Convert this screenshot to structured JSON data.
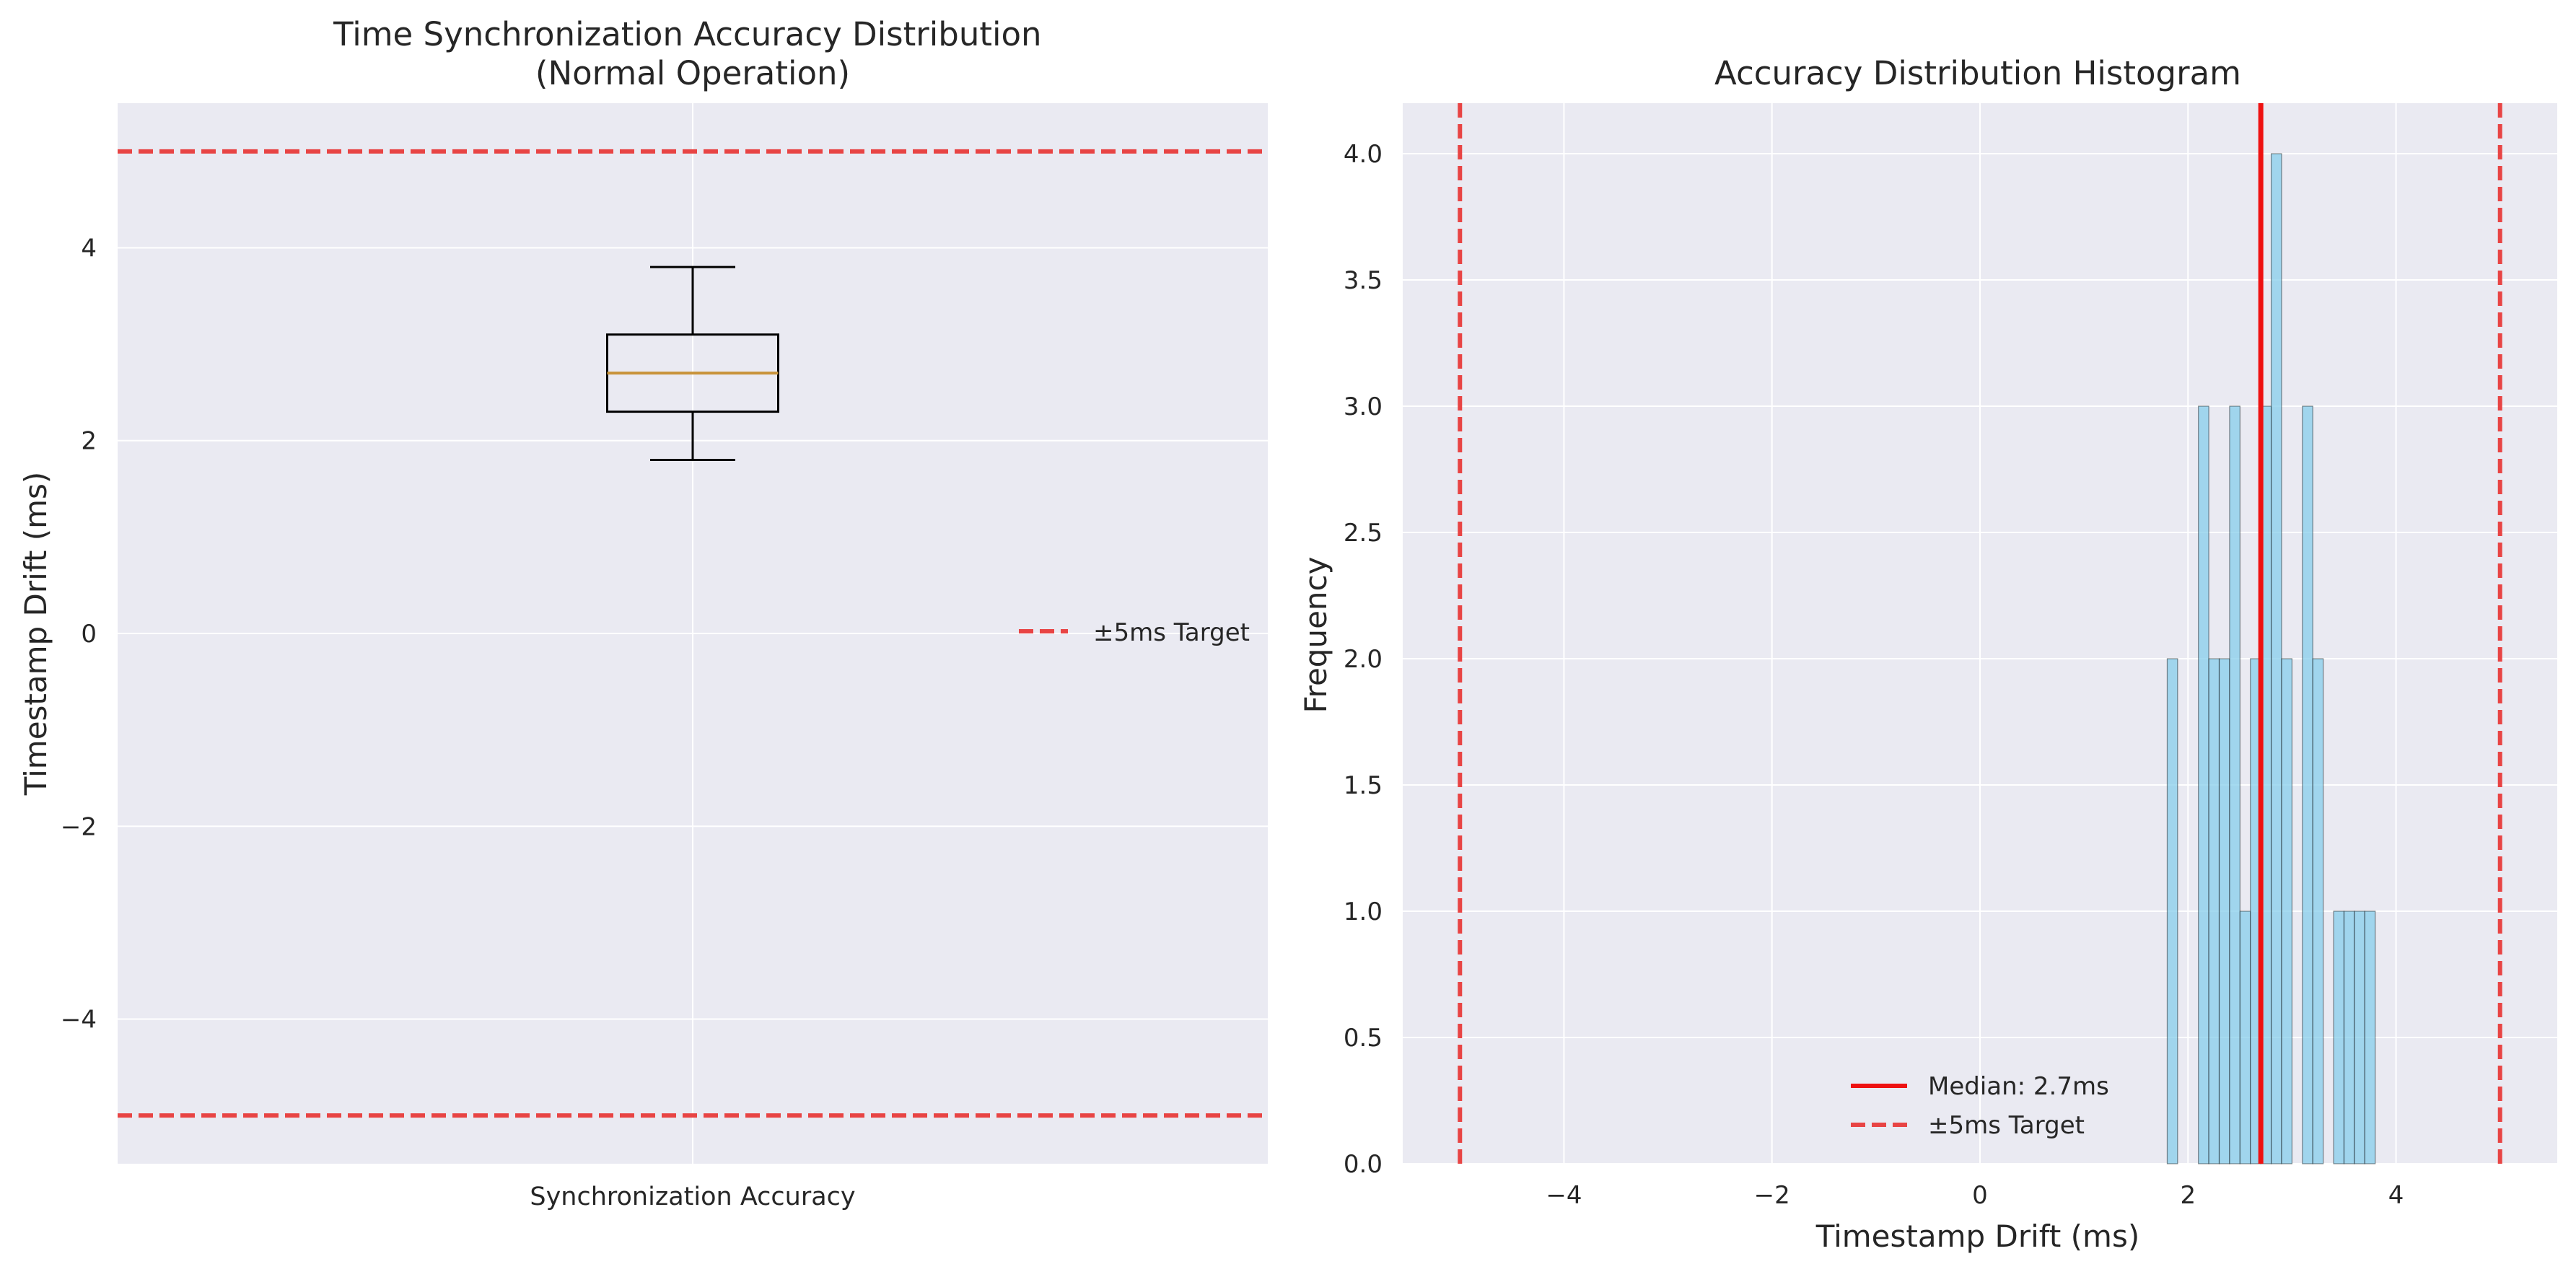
{
  "chart_data": [
    {
      "type": "box",
      "title": "Time Synchronization Accuracy Distribution\n(Normal Operation)",
      "xlabel": "",
      "ylabel": "Timestamp Drift (ms)",
      "categories": [
        "Synchronization Accuracy"
      ],
      "ylim": [
        -5.5,
        5.5
      ],
      "yticks": [
        -4,
        -2,
        0,
        2,
        4
      ],
      "ytick_labels": [
        "−4",
        "−2",
        "0",
        "2",
        "4"
      ],
      "box": {
        "whisker_low": 1.8,
        "q1": 2.3,
        "median": 2.7,
        "q3": 3.1,
        "whisker_high": 3.8
      },
      "reference_lines": [
        {
          "value": 5,
          "orientation": "horizontal",
          "label": "±5ms Target",
          "color": "#e84444",
          "style": "dashed"
        },
        {
          "value": -5,
          "orientation": "horizontal",
          "label": "",
          "color": "#e84444",
          "style": "dashed"
        }
      ],
      "legend": {
        "placement": "center-right",
        "entries": [
          "±5ms Target"
        ]
      },
      "grid": true,
      "colors": {
        "background": "#eaeaf2",
        "box": "#000000",
        "median": "#c8933a",
        "target": "#e84444"
      }
    },
    {
      "type": "histogram",
      "title": "Accuracy Distribution Histogram",
      "xlabel": "Timestamp Drift (ms)",
      "ylabel": "Frequency",
      "xlim": [
        -5.55,
        5.55
      ],
      "ylim": [
        0,
        4.2
      ],
      "xticks": [
        -4,
        -2,
        0,
        2,
        4
      ],
      "xtick_labels": [
        "−4",
        "−2",
        "0",
        "2",
        "4"
      ],
      "yticks": [
        0.0,
        0.5,
        1.0,
        1.5,
        2.0,
        2.5,
        3.0,
        3.5,
        4.0
      ],
      "ytick_labels": [
        "0.0",
        "0.5",
        "1.0",
        "1.5",
        "2.0",
        "2.5",
        "3.0",
        "3.5",
        "4.0"
      ],
      "bin_width": 0.1,
      "bins": [
        {
          "x": 1.8,
          "count": 2
        },
        {
          "x": 1.9,
          "count": 0
        },
        {
          "x": 2.0,
          "count": 0
        },
        {
          "x": 2.1,
          "count": 3
        },
        {
          "x": 2.2,
          "count": 2
        },
        {
          "x": 2.3,
          "count": 2
        },
        {
          "x": 2.4,
          "count": 3
        },
        {
          "x": 2.5,
          "count": 1
        },
        {
          "x": 2.6,
          "count": 2
        },
        {
          "x": 2.7,
          "count": 3
        },
        {
          "x": 2.8,
          "count": 4
        },
        {
          "x": 2.9,
          "count": 2
        },
        {
          "x": 3.0,
          "count": 0
        },
        {
          "x": 3.1,
          "count": 3
        },
        {
          "x": 3.2,
          "count": 2
        },
        {
          "x": 3.3,
          "count": 0
        },
        {
          "x": 3.4,
          "count": 1
        },
        {
          "x": 3.5,
          "count": 1
        },
        {
          "x": 3.6,
          "count": 1
        },
        {
          "x": 3.7,
          "count": 1
        }
      ],
      "reference_lines": [
        {
          "value": 2.7,
          "orientation": "vertical",
          "label": "Median: 2.7ms",
          "color": "#ee1111",
          "style": "solid"
        },
        {
          "value": -5,
          "orientation": "vertical",
          "label": "±5ms Target",
          "color": "#e84444",
          "style": "dashed"
        },
        {
          "value": 5,
          "orientation": "vertical",
          "label": "",
          "color": "#e84444",
          "style": "dashed"
        }
      ],
      "legend": {
        "placement": "lower-center",
        "entries": [
          "Median: 2.7ms",
          "±5ms Target"
        ]
      },
      "grid": true,
      "colors": {
        "background": "#eaeaf2",
        "bar": "#87ceeb",
        "bar_edge": "#000000",
        "median": "#ee1111",
        "target": "#e84444"
      }
    }
  ]
}
